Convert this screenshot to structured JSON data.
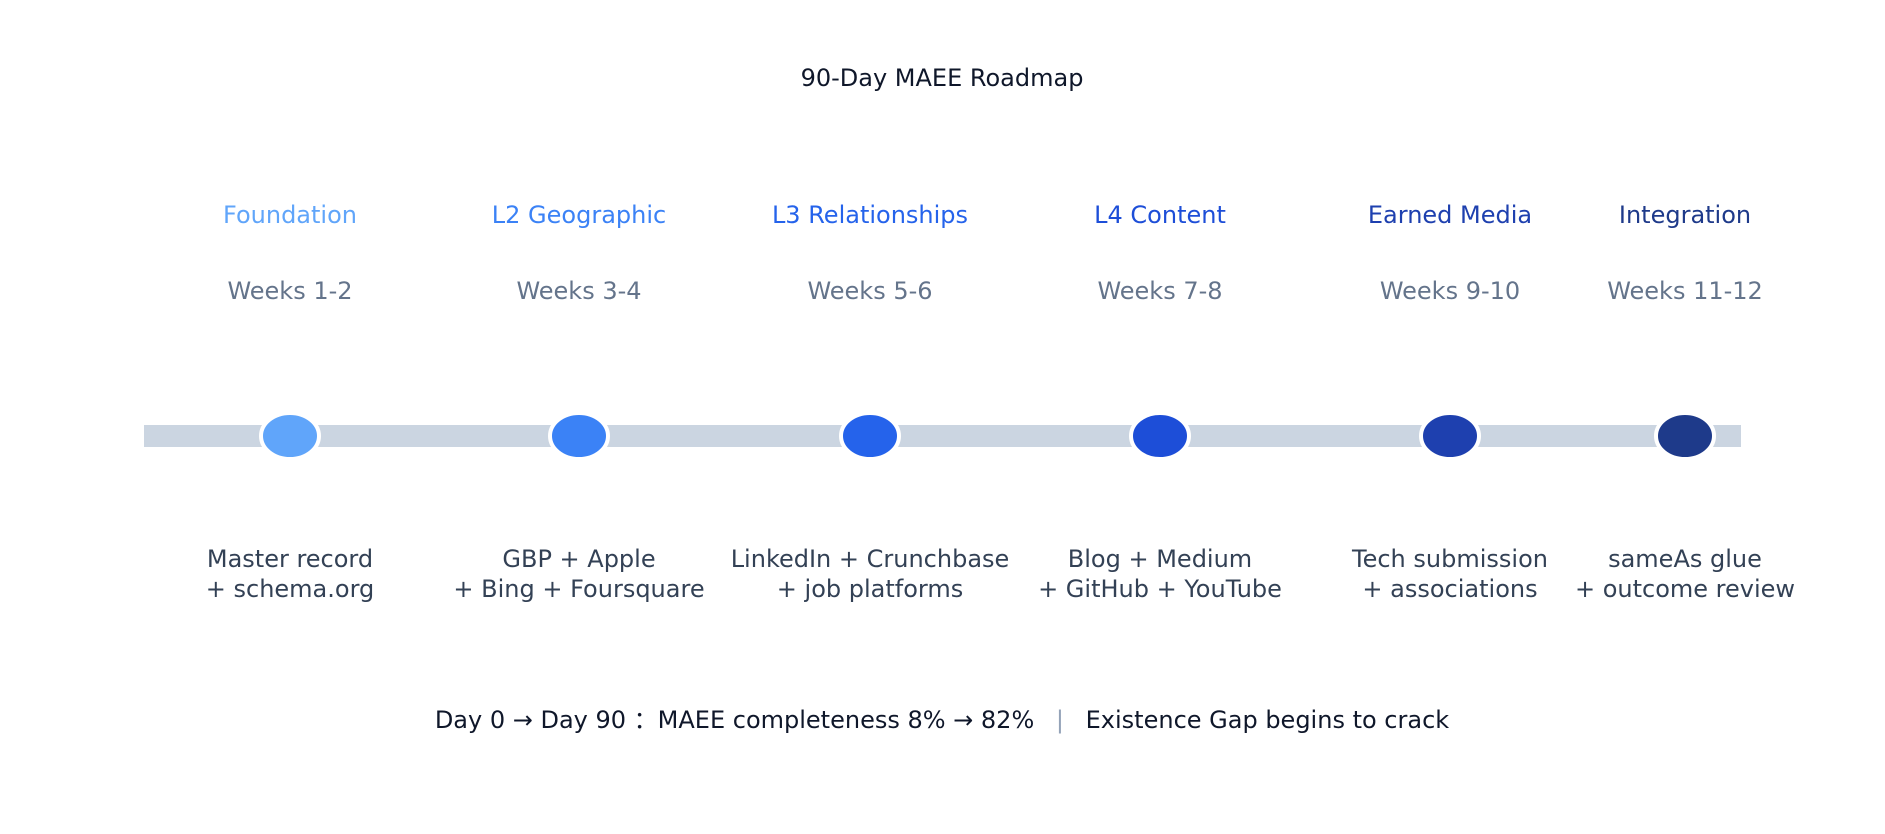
{
  "title": "90-Day MAEE Roadmap",
  "phases": [
    {
      "name": "Foundation",
      "weeks": "Weeks 1-2",
      "lines": [
        "Master record",
        "+ schema.org"
      ],
      "color": "#60a5fa"
    },
    {
      "name": "L2 Geographic",
      "weeks": "Weeks 3-4",
      "lines": [
        "GBP + Apple",
        "+ Bing + Foursquare"
      ],
      "color": "#3b82f6"
    },
    {
      "name": "L3 Relationships",
      "weeks": "Weeks 5-6",
      "lines": [
        "LinkedIn + Crunchbase",
        "+ job platforms"
      ],
      "color": "#2563eb"
    },
    {
      "name": "L4 Content",
      "weeks": "Weeks 7-8",
      "lines": [
        "Blog + Medium",
        "+ GitHub + YouTube"
      ],
      "color": "#1d4ed8"
    },
    {
      "name": "Earned Media",
      "weeks": "Weeks 9-10",
      "lines": [
        "Tech submission",
        "+ associations"
      ],
      "color": "#1e40af"
    },
    {
      "name": "Integration",
      "weeks": "Weeks 11-12",
      "lines": [
        "sameAs glue",
        "+ outcome review"
      ],
      "color": "#1e3a8a"
    }
  ],
  "footer": {
    "left": "Day 0 → Day 90 ：MAEE completeness 8% → 82%",
    "separator": "|",
    "right": "Existence Gap begins to crack"
  }
}
